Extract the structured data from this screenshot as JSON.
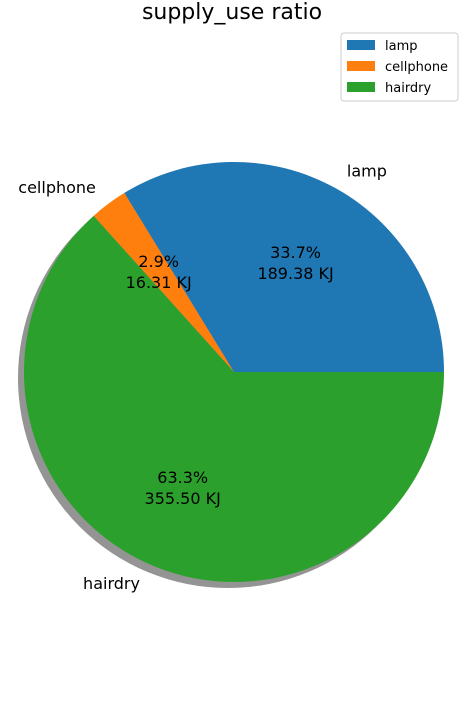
{
  "chart_data": {
    "type": "pie",
    "title": "supply_use ratio",
    "categories": [
      "lamp",
      "cellphone",
      "hairdry"
    ],
    "values": [
      189.38,
      16.31,
      355.5
    ],
    "percent_labels": [
      "33.7%",
      "2.9%",
      "63.3%"
    ],
    "value_labels": [
      "189.38 KJ",
      "16.31 KJ",
      "355.50 KJ"
    ],
    "colors": [
      "#1f77b4",
      "#ff7f0e",
      "#2ca02c"
    ],
    "shadow": true,
    "start_angle_deg": 0,
    "legend": {
      "placement": "top-right",
      "entries": [
        "lamp",
        "cellphone",
        "hairdry"
      ]
    }
  }
}
